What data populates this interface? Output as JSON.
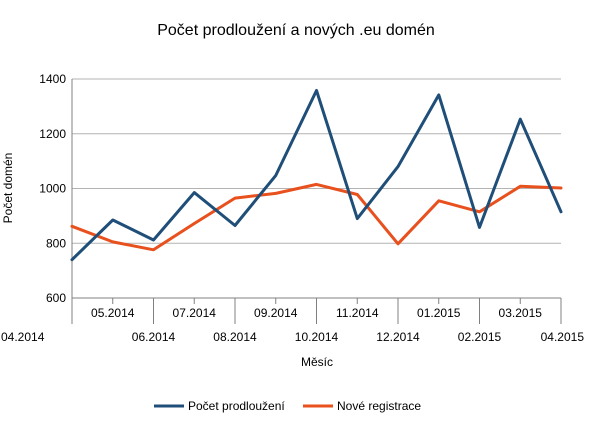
{
  "chart_data": {
    "type": "line",
    "title": "Počet prodloužení a nových .eu domén",
    "xlabel": "Měsíc",
    "ylabel": "Počet domén",
    "ylim": [
      600,
      1400
    ],
    "yticks": [
      600,
      800,
      1000,
      1200,
      1400
    ],
    "grid": true,
    "legend_position": "bottom",
    "categories": [
      "04.2014",
      "05.2014",
      "06.2014",
      "07.2014",
      "08.2014",
      "09.2014",
      "10.2014",
      "11.2014",
      "12.2014",
      "01.2015",
      "02.2015",
      "03.2015",
      "04.2015"
    ],
    "series": [
      {
        "name": "Počet prodloužení",
        "color": "#1f4e79",
        "values": [
          740,
          885,
          812,
          985,
          865,
          1048,
          1358,
          890,
          1080,
          1342,
          858,
          1253,
          915
        ]
      },
      {
        "name": "Nové registrace",
        "color": "#e8501e",
        "values": [
          862,
          805,
          776,
          872,
          965,
          982,
          1015,
          978,
          798,
          955,
          915,
          1008,
          1002
        ]
      }
    ]
  }
}
